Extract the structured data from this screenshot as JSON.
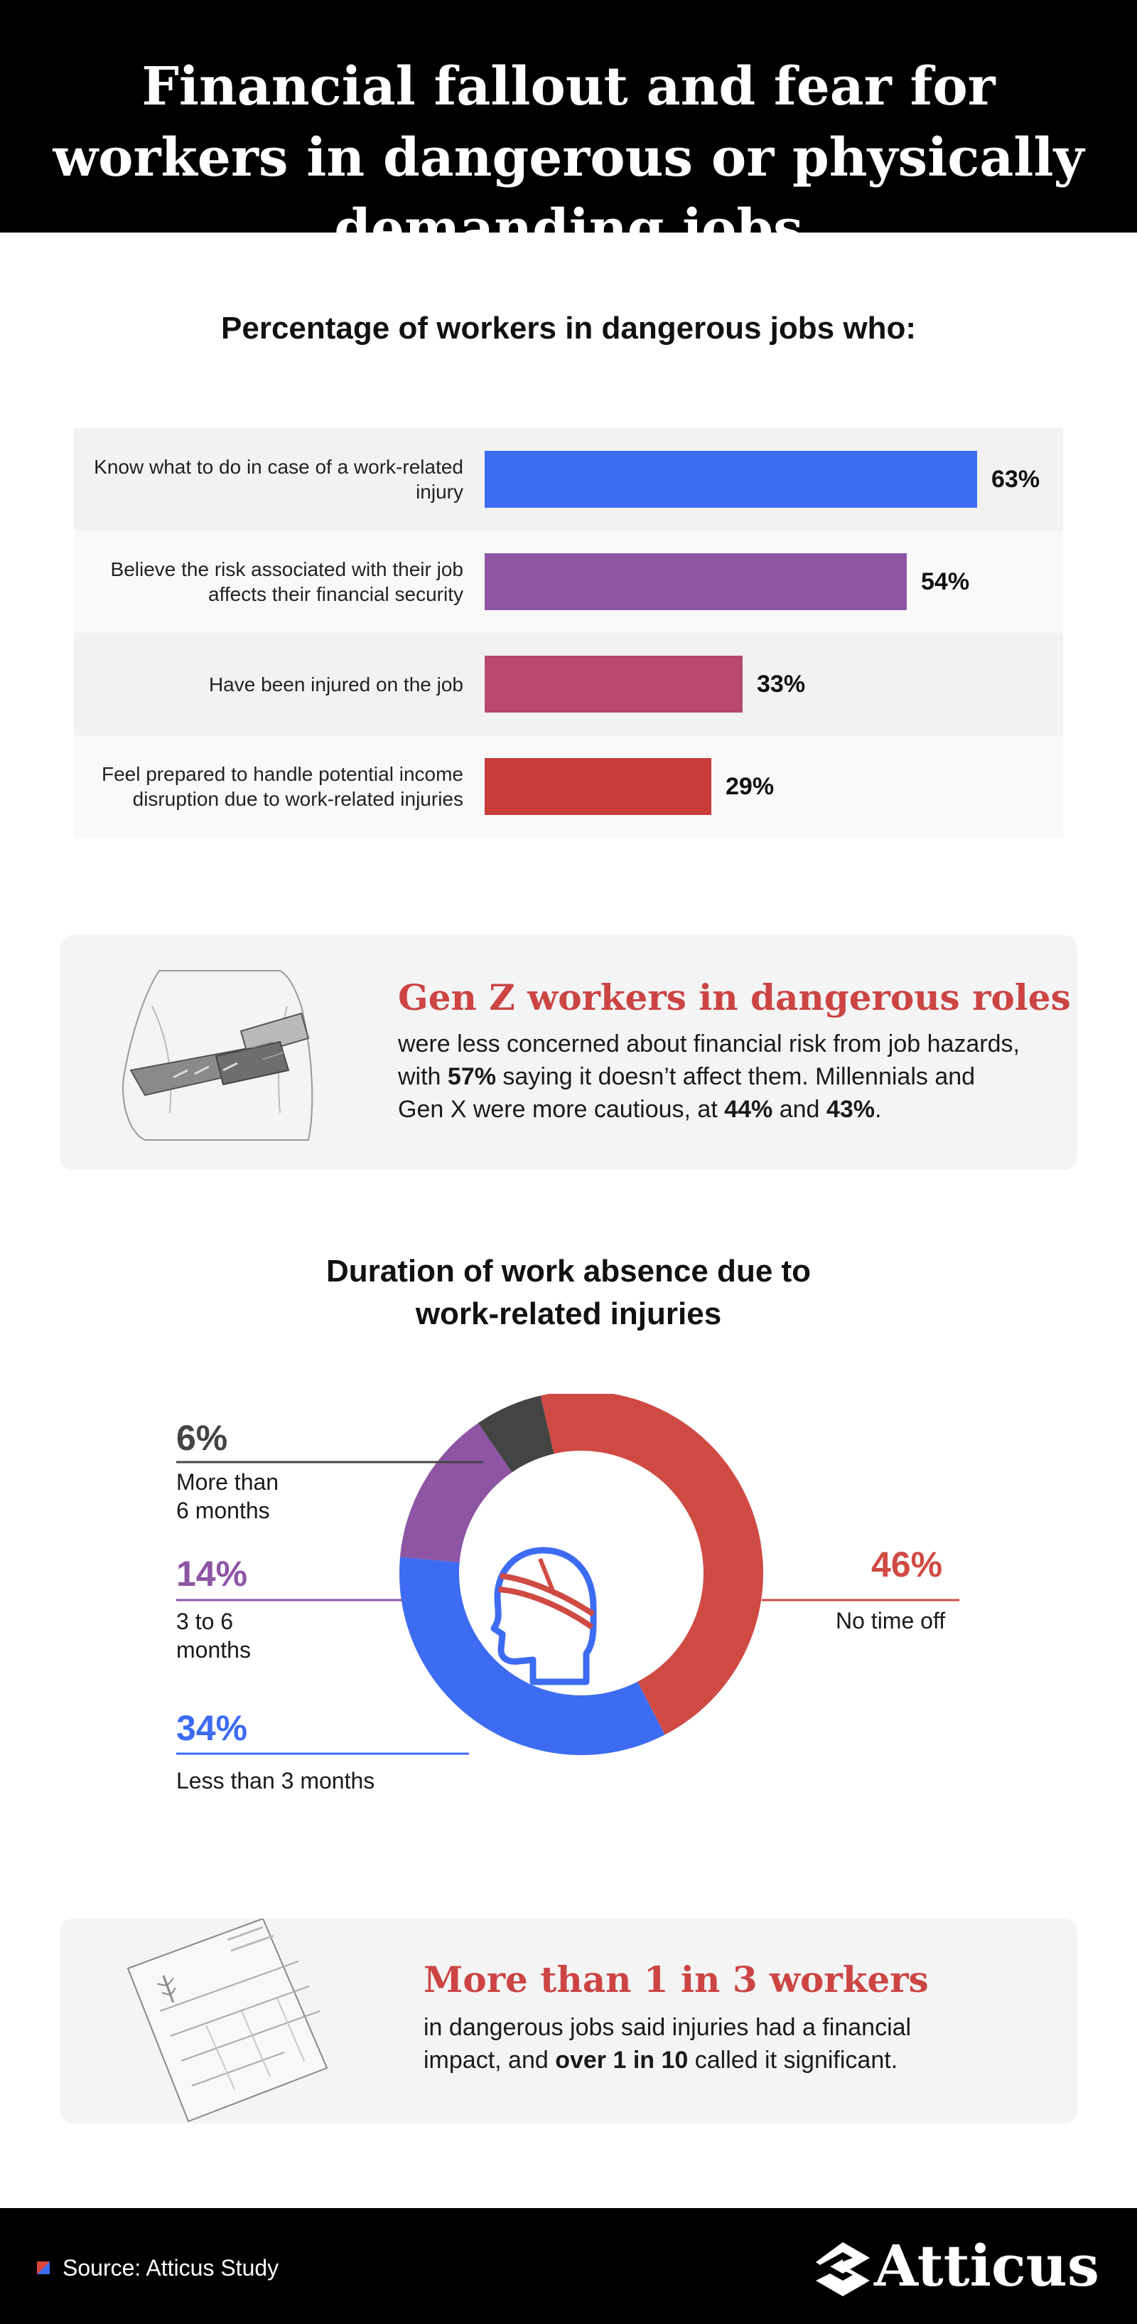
{
  "header": {
    "title": "Financial fallout and fear for workers in dangerous or physically demanding jobs"
  },
  "bar_section": {
    "title": "Percentage of workers in dangerous jobs who:"
  },
  "chart_data": [
    {
      "type": "bar",
      "orientation": "horizontal",
      "title": "Percentage of workers in dangerous jobs who:",
      "categories": [
        "Know what to do in case of a work-related injury",
        "Believe the risk associated with their job affects their financial security",
        "Have been injured on the job",
        "Feel prepared to handle potential income disruption due to work-related injuries"
      ],
      "values": [
        63,
        54,
        33,
        29
      ],
      "value_labels": [
        "63%",
        "54%",
        "33%",
        "29%"
      ],
      "colors": [
        "#3d6cf2",
        "#8e55a5",
        "#b74a6e",
        "#c93c3a"
      ],
      "xlim": [
        0,
        100
      ]
    },
    {
      "type": "pie",
      "variant": "donut",
      "title": "Duration of work absence due to work-related injuries",
      "categories": [
        "No time off",
        "Less than 3 months",
        "3 to 6 months",
        "More than 6 months"
      ],
      "values": [
        46,
        34,
        14,
        6
      ],
      "value_labels": [
        "46%",
        "34%",
        "14%",
        "6%"
      ],
      "colors": [
        "#d04a44",
        "#3d6cf2",
        "#8e55a5",
        "#444444"
      ]
    }
  ],
  "genz_callout": {
    "heading": "Gen Z workers in dangerous roles",
    "line1": "were less concerned about financial risk from job hazards,",
    "line2_a": "with ",
    "line2_b": "57%",
    "line2_c": " saying it doesn’t affect them. Millennials and",
    "line3_a": "Gen X were more cautious, at ",
    "line3_b": "44%",
    "line3_c": " and ",
    "line3_d": "43%",
    "line3_e": ".",
    "illustration": "injured-arm-cast-illustration"
  },
  "donut_section": {
    "title_line1": "Duration of work absence due to",
    "title_line2": "work-related injuries",
    "center_icon": "bandaged-head-icon",
    "labels": {
      "more_than_6": {
        "value": "6%",
        "text_line1": "More than",
        "text_line2": "6 months",
        "color": "#444444"
      },
      "three_to_6": {
        "value": "14%",
        "text_line1": "3 to 6",
        "text_line2": "months",
        "color": "#8e55a5"
      },
      "less_than_3": {
        "value": "34%",
        "text_line1": "Less than 3 months",
        "color": "#3d6cf2"
      },
      "no_time_off": {
        "value": "46%",
        "text_line1": "No time off",
        "color": "#d04a44"
      }
    }
  },
  "impact_callout": {
    "heading": "More than 1 in 3 workers",
    "line1": "in dangerous jobs said injuries had a financial",
    "line2_a": "impact, and ",
    "line2_b": "over 1 in 10",
    "line2_c": " called it significant.",
    "illustration": "medical-bill-illustration"
  },
  "footer": {
    "source": "Source: Atticus Study",
    "brand": "Atticus",
    "brand_icon": "atticus-logo-icon"
  }
}
